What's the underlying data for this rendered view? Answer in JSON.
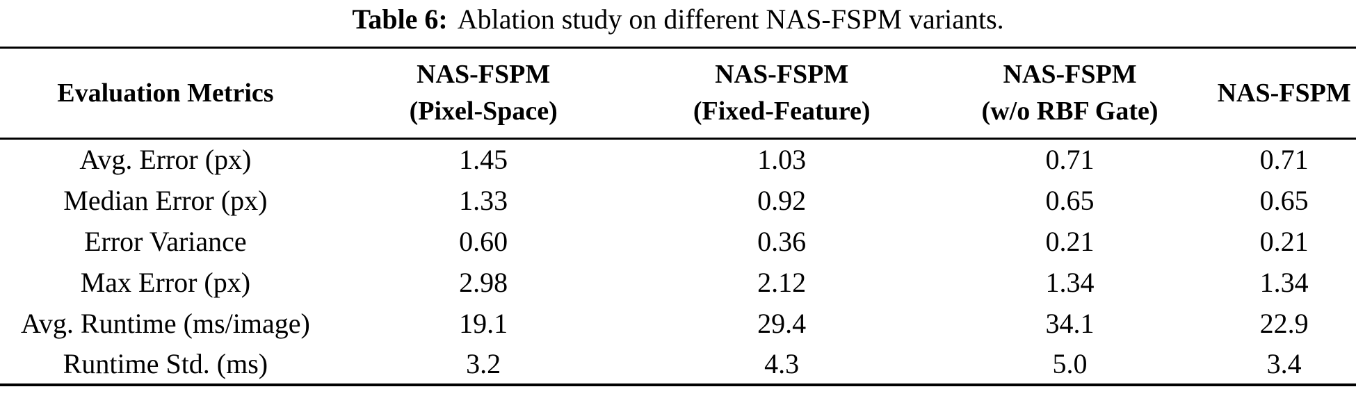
{
  "caption": {
    "label": "Table 6:",
    "text": "Ablation study on different NAS-FSPM variants."
  },
  "table": {
    "columns": [
      {
        "line1": "Evaluation Metrics",
        "line2": ""
      },
      {
        "line1": "NAS-FSPM",
        "line2": "(Pixel-Space)"
      },
      {
        "line1": "NAS-FSPM",
        "line2": "(Fixed-Feature)"
      },
      {
        "line1": "NAS-FSPM",
        "line2": "(w/o RBF Gate)"
      },
      {
        "line1": "NAS-FSPM",
        "line2": ""
      }
    ],
    "rows": [
      {
        "metric": "Avg. Error (px)",
        "values": [
          "1.45",
          "1.03",
          "0.71",
          "0.71"
        ]
      },
      {
        "metric": "Median Error (px)",
        "values": [
          "1.33",
          "0.92",
          "0.65",
          "0.65"
        ]
      },
      {
        "metric": "Error Variance",
        "values": [
          "0.60",
          "0.36",
          "0.21",
          "0.21"
        ]
      },
      {
        "metric": "Max Error (px)",
        "values": [
          "2.98",
          "2.12",
          "1.34",
          "1.34"
        ]
      },
      {
        "metric": "Avg. Runtime (ms/image)",
        "values": [
          "19.1",
          "29.4",
          "34.1",
          "22.9"
        ]
      },
      {
        "metric": "Runtime Std. (ms)",
        "values": [
          "3.2",
          "4.3",
          "5.0",
          "3.4"
        ]
      }
    ]
  }
}
